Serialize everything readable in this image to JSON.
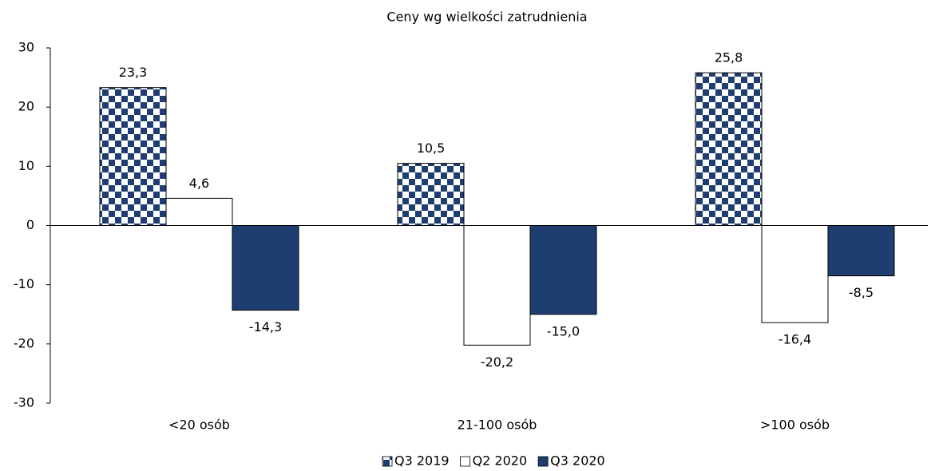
{
  "chart_data": {
    "type": "bar",
    "title": "Ceny wg wielkości zatrudnienia",
    "categories": [
      "<20 osób",
      "21-100 osób",
      ">100 osób"
    ],
    "series": [
      {
        "name": "Q3 2019",
        "color": "#1e3e72",
        "pattern": "checker",
        "values": [
          23.3,
          10.5,
          25.8
        ],
        "value_labels": [
          "23,3",
          "10,5",
          "25,8"
        ]
      },
      {
        "name": "Q2 2020",
        "color": "#ffffff",
        "values": [
          4.6,
          -20.2,
          -16.4
        ],
        "value_labels": [
          "4,6",
          "-20,2",
          "-16,4"
        ]
      },
      {
        "name": "Q3 2020",
        "color": "#1e3e72",
        "values": [
          -14.3,
          -15.0,
          -8.5
        ],
        "value_labels": [
          "-14,3",
          "-15,0",
          "-8,5"
        ]
      }
    ],
    "ylim": [
      -30,
      30
    ],
    "yticks": [
      -30,
      -20,
      -10,
      0,
      10,
      20,
      30
    ],
    "grid": false,
    "legend": "bottom"
  }
}
